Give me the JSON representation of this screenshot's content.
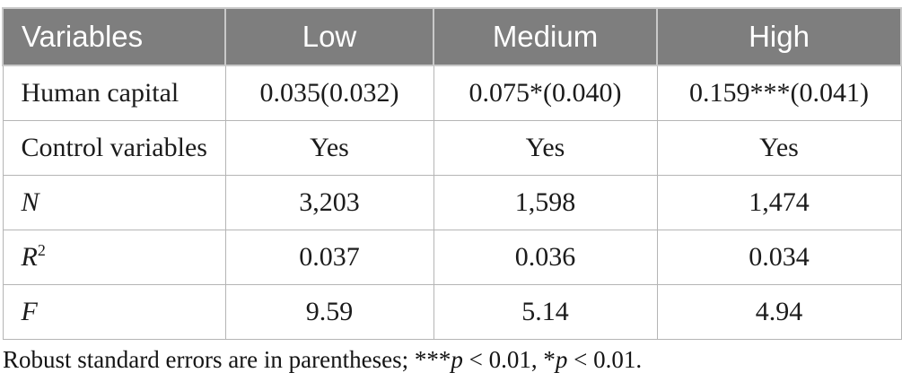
{
  "table": {
    "header": {
      "labels": [
        "Variables",
        "Low",
        "Medium",
        "High"
      ],
      "bg_color": "#7e7e7e",
      "text_color": "#ffffff",
      "divider_color": "#c9c9c9"
    },
    "border_color": "#b5b5b5",
    "rows": [
      {
        "label": "Human capital",
        "values": [
          "0.035(0.032)",
          "0.075*(0.040)",
          "0.159***(0.041)"
        ]
      },
      {
        "label": "Control variables",
        "values": [
          "Yes",
          "Yes",
          "Yes"
        ]
      },
      {
        "label": "N",
        "values": [
          "3,203",
          "1,598",
          "1,474"
        ]
      },
      {
        "label": "R",
        "label_sup": "2",
        "values": [
          "0.037",
          "0.036",
          "0.034"
        ]
      },
      {
        "label": "F",
        "values": [
          "9.59",
          "5.14",
          "4.94"
        ]
      }
    ]
  },
  "footnote": {
    "parts": {
      "p1": "Robust standard errors are in parentheses; ***",
      "p2": "p",
      "p3": " < 0.01, *",
      "p4": "p",
      "p5": " < 0.01."
    }
  }
}
